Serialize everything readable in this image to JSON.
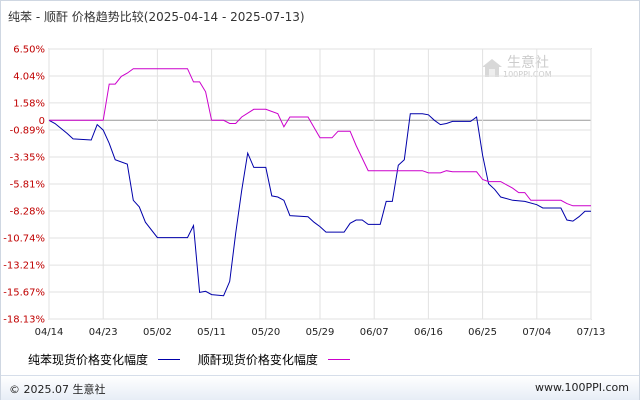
{
  "chart_data": {
    "type": "line",
    "title": "纯苯 - 顺酐 价格趋势比较(2025-04-14 - 2025-07-13)",
    "y_ticks": [
      "6.50%",
      "4.04%",
      "1.58%",
      "0",
      "-0.89%",
      "-3.35%",
      "-5.81%",
      "-8.28%",
      "-10.74%",
      "-13.21%",
      "-15.67%",
      "-18.13%"
    ],
    "y_tick_values": [
      6.5,
      4.04,
      1.58,
      0,
      -0.89,
      -3.35,
      -5.81,
      -8.28,
      -10.74,
      -13.21,
      -15.67,
      -18.13
    ],
    "ylim": [
      -18.13,
      6.5
    ],
    "x_ticks": [
      "04/14",
      "04/23",
      "05/02",
      "05/11",
      "05/20",
      "05/29",
      "06/07",
      "06/16",
      "06/25",
      "07/04",
      "07/13"
    ],
    "x_range": [
      "2025-04-14",
      "2025-07-13"
    ],
    "grid": true,
    "legend_position": "bottom",
    "series": [
      {
        "name": "纯苯现货价格变化幅度",
        "color": "#0000aa",
        "points": [
          [
            "2025-04-14",
            0.0
          ],
          [
            "2025-04-15",
            -0.3
          ],
          [
            "2025-04-17",
            -1.2
          ],
          [
            "2025-04-18",
            -1.7
          ],
          [
            "2025-04-21",
            -1.8
          ],
          [
            "2025-04-22",
            -0.4
          ],
          [
            "2025-04-23",
            -0.9
          ],
          [
            "2025-04-24",
            -2.1
          ],
          [
            "2025-04-25",
            -3.6
          ],
          [
            "2025-04-27",
            -4.0
          ],
          [
            "2025-04-28",
            -7.3
          ],
          [
            "2025-04-29",
            -7.9
          ],
          [
            "2025-04-30",
            -9.3
          ],
          [
            "2025-05-02",
            -10.7
          ],
          [
            "2025-05-07",
            -10.7
          ],
          [
            "2025-05-08",
            -9.6
          ],
          [
            "2025-05-09",
            -15.7
          ],
          [
            "2025-05-10",
            -15.6
          ],
          [
            "2025-05-11",
            -15.9
          ],
          [
            "2025-05-13",
            -16.0
          ],
          [
            "2025-05-14",
            -14.7
          ],
          [
            "2025-05-15",
            -10.3
          ],
          [
            "2025-05-16",
            -6.4
          ],
          [
            "2025-05-17",
            -3.0
          ],
          [
            "2025-05-18",
            -4.3
          ],
          [
            "2025-05-20",
            -4.3
          ],
          [
            "2025-05-21",
            -6.9
          ],
          [
            "2025-05-22",
            -7.0
          ],
          [
            "2025-05-23",
            -7.3
          ],
          [
            "2025-05-24",
            -8.7
          ],
          [
            "2025-05-27",
            -8.8
          ],
          [
            "2025-05-28",
            -9.3
          ],
          [
            "2025-05-29",
            -9.7
          ],
          [
            "2025-05-30",
            -10.2
          ],
          [
            "2025-06-02",
            -10.2
          ],
          [
            "2025-06-03",
            -9.4
          ],
          [
            "2025-06-04",
            -9.1
          ],
          [
            "2025-06-05",
            -9.1
          ],
          [
            "2025-06-06",
            -9.5
          ],
          [
            "2025-06-08",
            -9.5
          ],
          [
            "2025-06-09",
            -7.4
          ],
          [
            "2025-06-10",
            -7.4
          ],
          [
            "2025-06-11",
            -4.1
          ],
          [
            "2025-06-12",
            -3.6
          ],
          [
            "2025-06-13",
            0.6
          ],
          [
            "2025-06-15",
            0.6
          ],
          [
            "2025-06-16",
            0.5
          ],
          [
            "2025-06-17",
            0.0
          ],
          [
            "2025-06-18",
            -0.4
          ],
          [
            "2025-06-19",
            -0.3
          ],
          [
            "2025-06-20",
            -0.1
          ],
          [
            "2025-06-23",
            -0.1
          ],
          [
            "2025-06-24",
            0.3
          ],
          [
            "2025-06-25",
            -3.2
          ],
          [
            "2025-06-26",
            -5.8
          ],
          [
            "2025-06-27",
            -6.3
          ],
          [
            "2025-06-28",
            -7.0
          ],
          [
            "2025-06-30",
            -7.3
          ],
          [
            "2025-07-02",
            -7.4
          ],
          [
            "2025-07-04",
            -7.7
          ],
          [
            "2025-07-05",
            -8.0
          ],
          [
            "2025-07-08",
            -8.0
          ],
          [
            "2025-07-09",
            -9.1
          ],
          [
            "2025-07-10",
            -9.2
          ],
          [
            "2025-07-11",
            -8.8
          ],
          [
            "2025-07-12",
            -8.3
          ],
          [
            "2025-07-13",
            -8.3
          ]
        ]
      },
      {
        "name": "顺酐现货价格变化幅度",
        "color": "#cc00cc",
        "points": [
          [
            "2025-04-14",
            0.0
          ],
          [
            "2025-04-23",
            0.0
          ],
          [
            "2025-04-24",
            3.3
          ],
          [
            "2025-04-25",
            3.3
          ],
          [
            "2025-04-26",
            4.0
          ],
          [
            "2025-04-27",
            4.3
          ],
          [
            "2025-04-28",
            4.7
          ],
          [
            "2025-05-07",
            4.7
          ],
          [
            "2025-05-08",
            3.5
          ],
          [
            "2025-05-09",
            3.5
          ],
          [
            "2025-05-10",
            2.6
          ],
          [
            "2025-05-11",
            0.0
          ],
          [
            "2025-05-13",
            0.0
          ],
          [
            "2025-05-14",
            -0.3
          ],
          [
            "2025-05-15",
            -0.3
          ],
          [
            "2025-05-16",
            0.3
          ],
          [
            "2025-05-18",
            1.0
          ],
          [
            "2025-05-20",
            1.0
          ],
          [
            "2025-05-22",
            0.6
          ],
          [
            "2025-05-23",
            -0.6
          ],
          [
            "2025-05-24",
            0.3
          ],
          [
            "2025-05-27",
            0.3
          ],
          [
            "2025-05-29",
            -1.6
          ],
          [
            "2025-05-31",
            -1.6
          ],
          [
            "2025-06-01",
            -1.0
          ],
          [
            "2025-06-03",
            -1.0
          ],
          [
            "2025-06-04",
            -2.3
          ],
          [
            "2025-06-06",
            -4.6
          ],
          [
            "2025-06-15",
            -4.6
          ],
          [
            "2025-06-16",
            -4.8
          ],
          [
            "2025-06-18",
            -4.8
          ],
          [
            "2025-06-19",
            -4.6
          ],
          [
            "2025-06-20",
            -4.7
          ],
          [
            "2025-06-24",
            -4.7
          ],
          [
            "2025-06-25",
            -5.4
          ],
          [
            "2025-06-26",
            -5.6
          ],
          [
            "2025-06-28",
            -5.6
          ],
          [
            "2025-06-30",
            -6.2
          ],
          [
            "2025-07-01",
            -6.6
          ],
          [
            "2025-07-02",
            -6.6
          ],
          [
            "2025-07-03",
            -7.3
          ],
          [
            "2025-07-08",
            -7.3
          ],
          [
            "2025-07-09",
            -7.6
          ],
          [
            "2025-07-10",
            -7.8
          ],
          [
            "2025-07-13",
            -7.8
          ]
        ]
      }
    ]
  },
  "watermark": {
    "brand": "生意社",
    "url": "100PPI.COM"
  },
  "footer": {
    "copyright": "© 2025.07 生意社",
    "site": "www.100PPI.com"
  }
}
